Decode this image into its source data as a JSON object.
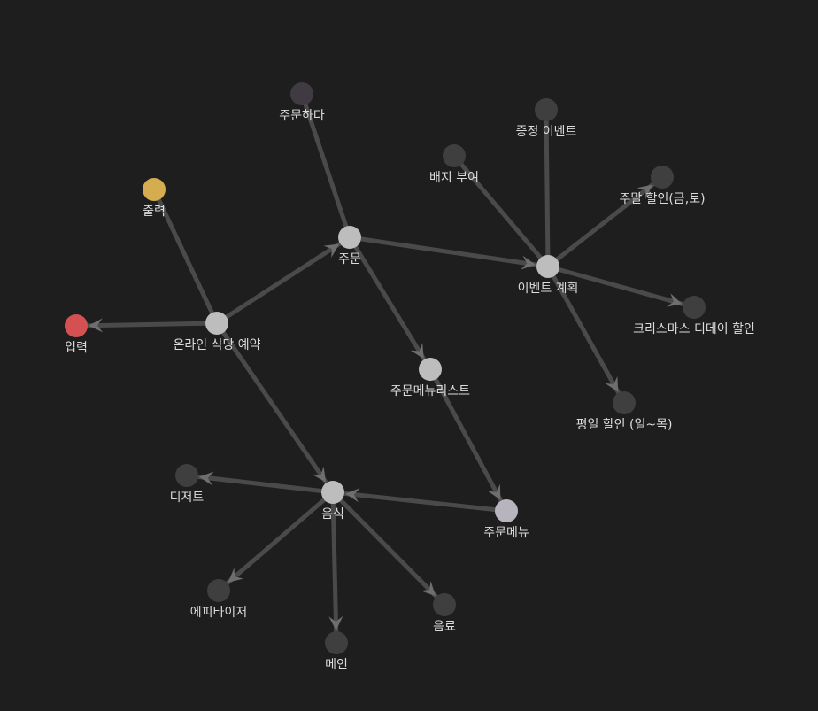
{
  "graph": {
    "background": "#1e1e1e",
    "edge_color": "#4a4a4a",
    "arrow_color": "#6e6e6e",
    "nodes": [
      {
        "id": "order-verb",
        "label": "주문하다",
        "color": "#403b42"
      },
      {
        "id": "gift-event",
        "label": "증정 이벤트",
        "color": "#403f40"
      },
      {
        "id": "badge",
        "label": "배지 부여",
        "color": "#403f40"
      },
      {
        "id": "weekend",
        "label": "주말 할인(금,토)",
        "color": "#403f40"
      },
      {
        "id": "output",
        "label": "출력",
        "color": "#d5ac4f"
      },
      {
        "id": "order",
        "label": "주문",
        "color": "#bdbdbd"
      },
      {
        "id": "event-plan",
        "label": "이벤트 계획",
        "color": "#bdbdbd"
      },
      {
        "id": "christmas",
        "label": "크리스마스 디데이 할인",
        "color": "#403f40"
      },
      {
        "id": "input",
        "label": "입력",
        "color": "#d55151"
      },
      {
        "id": "reservation",
        "label": "온라인 식당 예약",
        "color": "#bdbdbd"
      },
      {
        "id": "menu-list",
        "label": "주문메뉴리스트",
        "color": "#bdbdbd"
      },
      {
        "id": "weekday",
        "label": "평일 할인 (일~목)",
        "color": "#403f40"
      },
      {
        "id": "dessert",
        "label": "디저트",
        "color": "#403f40"
      },
      {
        "id": "food",
        "label": "음식",
        "color": "#bdbdbd"
      },
      {
        "id": "order-menu",
        "label": "주문메뉴",
        "color": "#b8b4bd"
      },
      {
        "id": "appetizer",
        "label": "에피타이저",
        "color": "#403f40"
      },
      {
        "id": "drink",
        "label": "음료",
        "color": "#403f40"
      },
      {
        "id": "main",
        "label": "메인",
        "color": "#403f40"
      }
    ],
    "edges": [
      {
        "from": "order",
        "to": "order-verb",
        "arrow": false
      },
      {
        "from": "order",
        "to": "event-plan",
        "arrow": true
      },
      {
        "from": "order",
        "to": "menu-list",
        "arrow": true
      },
      {
        "from": "event-plan",
        "to": "gift-event",
        "arrow": false
      },
      {
        "from": "event-plan",
        "to": "badge",
        "arrow": false
      },
      {
        "from": "event-plan",
        "to": "weekend",
        "arrow": true
      },
      {
        "from": "event-plan",
        "to": "christmas",
        "arrow": true
      },
      {
        "from": "event-plan",
        "to": "weekday",
        "arrow": true
      },
      {
        "from": "reservation",
        "to": "output",
        "arrow": false
      },
      {
        "from": "reservation",
        "to": "input",
        "arrow": true
      },
      {
        "from": "reservation",
        "to": "order",
        "arrow": true
      },
      {
        "from": "reservation",
        "to": "food",
        "arrow": true
      },
      {
        "from": "menu-list",
        "to": "order-menu",
        "arrow": true
      },
      {
        "from": "order-menu",
        "to": "food",
        "arrow": true
      },
      {
        "from": "food",
        "to": "dessert",
        "arrow": true
      },
      {
        "from": "food",
        "to": "appetizer",
        "arrow": true
      },
      {
        "from": "food",
        "to": "drink",
        "arrow": true
      },
      {
        "from": "food",
        "to": "main",
        "arrow": true
      }
    ]
  }
}
